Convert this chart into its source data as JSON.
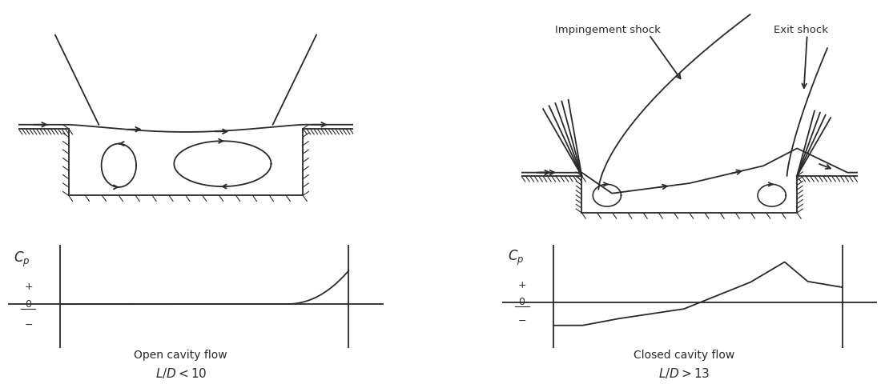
{
  "bg_color": "#ffffff",
  "line_color": "#2a2a2a",
  "title_open": "Open cavity flow",
  "title_closed": "Closed cavity flow",
  "label_open": "$L/D < 10$",
  "label_closed": "$L/D > 13$",
  "impingement_label": "Impingement shock",
  "exit_label": "Exit shock",
  "cp_label": "$C_p$"
}
